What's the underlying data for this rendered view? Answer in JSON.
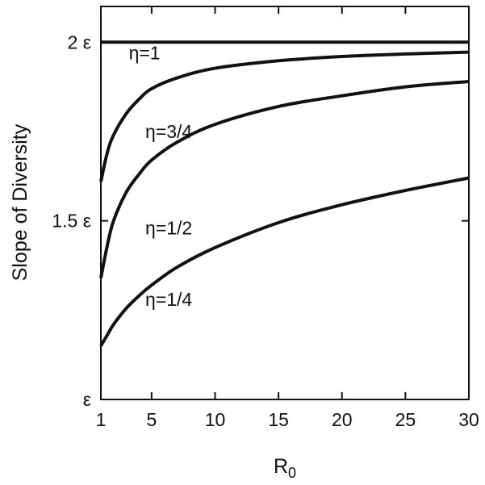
{
  "chart_data": {
    "type": "line",
    "title": "",
    "xlabel": "R",
    "xlabel_subscript": "0",
    "ylabel": "Slope of Diversity",
    "xlim": [
      1,
      30
    ],
    "ylim": [
      1,
      2.1
    ],
    "x_ticks": [
      1,
      5,
      10,
      15,
      20,
      25,
      30
    ],
    "x_tick_labels": [
      "1",
      "5",
      "10",
      "15",
      "20",
      "25",
      "30"
    ],
    "y_ticks": [
      1,
      1.5,
      2
    ],
    "y_tick_labels": [
      "ε",
      "1.5 ε",
      "2 ε"
    ],
    "y_unit": "ε",
    "grid": false,
    "legend": "none",
    "line_color": "#111111",
    "series": [
      {
        "label": "η=1",
        "eta": 1,
        "label_at": [
          3.2,
          1.97
        ],
        "x": [
          1,
          30
        ],
        "y": [
          2.0,
          2.0
        ]
      },
      {
        "label": "η=3/4",
        "eta": 0.75,
        "label_at": [
          4.5,
          1.75
        ],
        "x": [
          1,
          1.5,
          2,
          3,
          4,
          5,
          7,
          10,
          15,
          20,
          25,
          30
        ],
        "y": [
          1.61,
          1.69,
          1.74,
          1.8,
          1.84,
          1.87,
          1.9,
          1.927,
          1.948,
          1.96,
          1.967,
          1.972
        ]
      },
      {
        "label": "η=1/2",
        "eta": 0.5,
        "label_at": [
          4.5,
          1.48
        ],
        "x": [
          1,
          1.5,
          2,
          3,
          4,
          5,
          7,
          10,
          15,
          20,
          25,
          30
        ],
        "y": [
          1.34,
          1.43,
          1.5,
          1.58,
          1.63,
          1.67,
          1.72,
          1.77,
          1.82,
          1.85,
          1.875,
          1.89
        ]
      },
      {
        "label": "η=1/4",
        "eta": 0.25,
        "label_at": [
          4.5,
          1.28
        ],
        "x": [
          1,
          1.5,
          2,
          3,
          4,
          5,
          7,
          10,
          15,
          20,
          25,
          30
        ],
        "y": [
          1.15,
          1.18,
          1.21,
          1.255,
          1.29,
          1.32,
          1.37,
          1.425,
          1.495,
          1.545,
          1.585,
          1.62
        ]
      }
    ]
  }
}
